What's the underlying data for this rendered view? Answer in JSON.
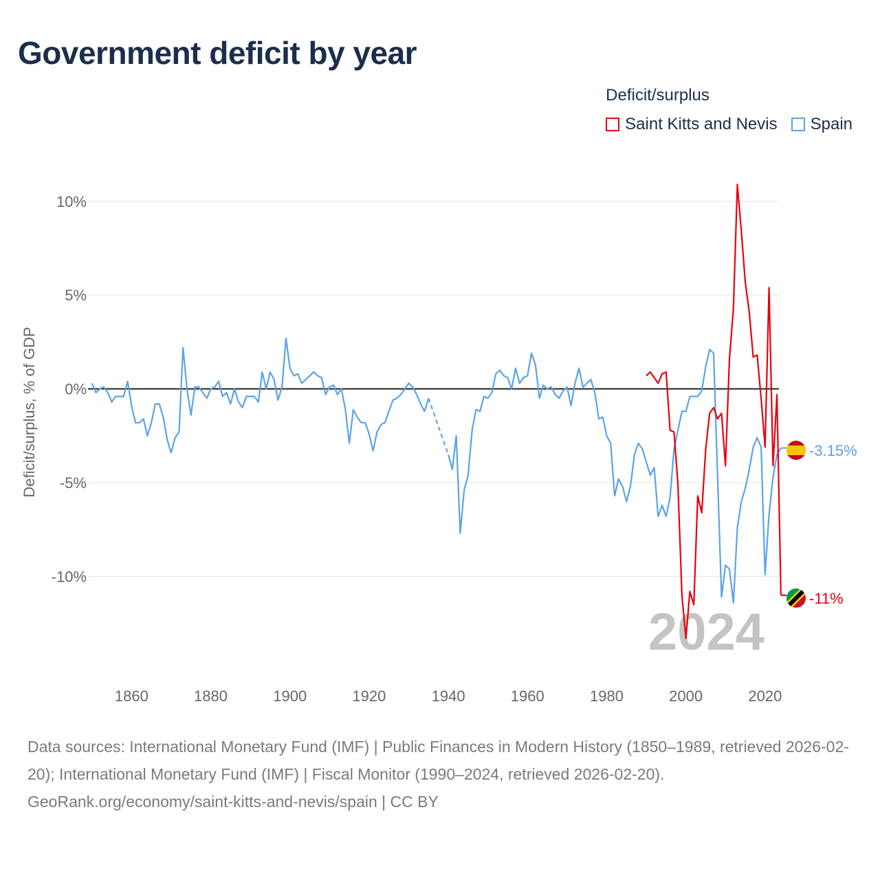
{
  "title": "Government deficit by year",
  "legend": {
    "title": "Deficit/surplus",
    "items": [
      {
        "label": "Saint Kitts and Nevis",
        "color": "#e8000b"
      },
      {
        "label": "Spain",
        "color": "#5ba3e6"
      }
    ]
  },
  "chart_data": {
    "type": "line",
    "ylabel": "Deficit/surplus, % of GDP",
    "xlim": [
      1849,
      2023.5
    ],
    "ylim": [
      -15,
      12.3
    ],
    "xticks": [
      1860,
      1880,
      1900,
      1920,
      1940,
      1960,
      1980,
      2000,
      2020
    ],
    "yticks": [
      10,
      5,
      0,
      -5,
      -10
    ],
    "ytick_labels": [
      "10%",
      "5%",
      "0%",
      "-5%",
      "-10%"
    ],
    "year_watermark": "2024",
    "end_labels": {
      "spain": "-3.15%",
      "skn": "-11%"
    },
    "series": [
      {
        "name": "Spain",
        "color": "#5ba3e6",
        "gap": [
          1935,
          1940
        ],
        "x": [
          1850,
          1851,
          1852,
          1853,
          1854,
          1855,
          1856,
          1857,
          1858,
          1859,
          1860,
          1861,
          1862,
          1863,
          1864,
          1865,
          1866,
          1867,
          1868,
          1869,
          1870,
          1871,
          1872,
          1873,
          1874,
          1875,
          1876,
          1877,
          1878,
          1879,
          1880,
          1881,
          1882,
          1883,
          1884,
          1885,
          1886,
          1887,
          1888,
          1889,
          1890,
          1891,
          1892,
          1893,
          1894,
          1895,
          1896,
          1897,
          1898,
          1899,
          1900,
          1901,
          1902,
          1903,
          1904,
          1905,
          1906,
          1907,
          1908,
          1909,
          1910,
          1911,
          1912,
          1913,
          1914,
          1915,
          1916,
          1917,
          1918,
          1919,
          1920,
          1921,
          1922,
          1923,
          1924,
          1925,
          1926,
          1927,
          1928,
          1929,
          1930,
          1931,
          1932,
          1933,
          1934,
          1935,
          1940,
          1941,
          1942,
          1943,
          1944,
          1945,
          1946,
          1947,
          1948,
          1949,
          1950,
          1951,
          1952,
          1953,
          1954,
          1955,
          1956,
          1957,
          1958,
          1959,
          1960,
          1961,
          1962,
          1963,
          1964,
          1965,
          1966,
          1967,
          1968,
          1969,
          1970,
          1971,
          1972,
          1973,
          1974,
          1975,
          1976,
          1977,
          1978,
          1979,
          1980,
          1981,
          1982,
          1983,
          1984,
          1985,
          1986,
          1987,
          1988,
          1989,
          1990,
          1991,
          1992,
          1993,
          1994,
          1995,
          1996,
          1997,
          1998,
          1999,
          2000,
          2001,
          2002,
          2003,
          2004,
          2005,
          2006,
          2007,
          2008,
          2009,
          2010,
          2011,
          2012,
          2013,
          2014,
          2015,
          2016,
          2017,
          2018,
          2019,
          2020,
          2021,
          2022,
          2023,
          2024
        ],
        "values": [
          0.3,
          -0.2,
          0,
          0.1,
          -0.2,
          -0.7,
          -0.4,
          -0.4,
          -0.4,
          0.4,
          -0.9,
          -1.8,
          -1.8,
          -1.6,
          -2.5,
          -1.8,
          -0.8,
          -0.8,
          -1.5,
          -2.7,
          -3.4,
          -2.6,
          -2.3,
          2.2,
          0,
          -1.4,
          0.1,
          0.1,
          -0.2,
          -0.5,
          0,
          0.1,
          0.4,
          -0.4,
          -0.2,
          -0.8,
          0,
          -0.7,
          -1,
          -0.4,
          -0.4,
          -0.4,
          -0.7,
          0.9,
          0,
          0.9,
          0.5,
          -0.6,
          0.1,
          2.7,
          1.1,
          0.7,
          0.8,
          0.3,
          0.5,
          0.7,
          0.9,
          0.7,
          0.6,
          -0.3,
          0.1,
          0.2,
          -0.3,
          0,
          -1.1,
          -2.9,
          -1.1,
          -1.5,
          -1.8,
          -1.8,
          -2.4,
          -3.3,
          -2.3,
          -1.9,
          -1.8,
          -1.2,
          -0.6,
          -0.5,
          -0.3,
          0,
          0.3,
          0.1,
          -0.3,
          -0.8,
          -1.2,
          -0.5,
          -3.5,
          -4.3,
          -2.5,
          -7.7,
          -5.4,
          -4.6,
          -2.2,
          -1.1,
          -1.2,
          -0.4,
          -0.5,
          -0.2,
          0.8,
          1,
          0.7,
          0.6,
          0,
          1.1,
          0.3,
          0.6,
          0.7,
          1.9,
          1.3,
          -0.5,
          0.2,
          0,
          0.1,
          -0.3,
          -0.5,
          -0.1,
          0.1,
          -0.9,
          0.3,
          1.1,
          0.1,
          0.3,
          0.5,
          -0.2,
          -1.6,
          -1.5,
          -2.5,
          -2.9,
          -5.7,
          -4.8,
          -5.2,
          -6,
          -5.2,
          -3.5,
          -2.9,
          -3.2,
          -3.9,
          -4.6,
          -4.2,
          -6.8,
          -6.2,
          -6.8,
          -5.8,
          -3.2,
          -2.2,
          -1.2,
          -1.2,
          -0.4,
          -0.4,
          -0.4,
          -0.1,
          1.2,
          2.1,
          1.9,
          -4.6,
          -11.1,
          -9.4,
          -9.6,
          -11.4,
          -7.4,
          -6,
          -5.3,
          -4.3,
          -3.1,
          -2.6,
          -3.1,
          -9.9,
          -6.7,
          -4.7,
          -3.5,
          -3.15
        ]
      },
      {
        "name": "Saint Kitts and Nevis",
        "color": "#e8000b",
        "x": [
          1990,
          1991,
          1992,
          1993,
          1994,
          1995,
          1996,
          1997,
          1998,
          1999,
          2000,
          2001,
          2002,
          2003,
          2004,
          2005,
          2006,
          2007,
          2008,
          2009,
          2010,
          2011,
          2012,
          2013,
          2014,
          2015,
          2016,
          2017,
          2018,
          2019,
          2020,
          2021,
          2022,
          2023,
          2024
        ],
        "values": [
          0.7,
          0.9,
          0.6,
          0.3,
          0.8,
          0.9,
          -2.2,
          -2.3,
          -5.1,
          -11,
          -13.3,
          -10.8,
          -11.5,
          -5.7,
          -6.6,
          -3.2,
          -1.3,
          -1,
          -1.6,
          -1.3,
          -4.1,
          1.6,
          4.3,
          10.9,
          8.4,
          5.7,
          4.1,
          1.7,
          1.8,
          -0.5,
          -3.1,
          5.4,
          -4.1,
          -0.3,
          -11
        ]
      }
    ]
  },
  "footer": {
    "sources": "Data sources: International Monetary Fund (IMF) | Public Finances in Modern History (1850–1989, retrieved 2026-02-20); International Monetary Fund (IMF) | Fiscal Monitor (1990–2024, retrieved 2026-02-20).",
    "url": "GeoRank.org/economy/saint-kitts-and-nevis/spain | CC BY"
  }
}
